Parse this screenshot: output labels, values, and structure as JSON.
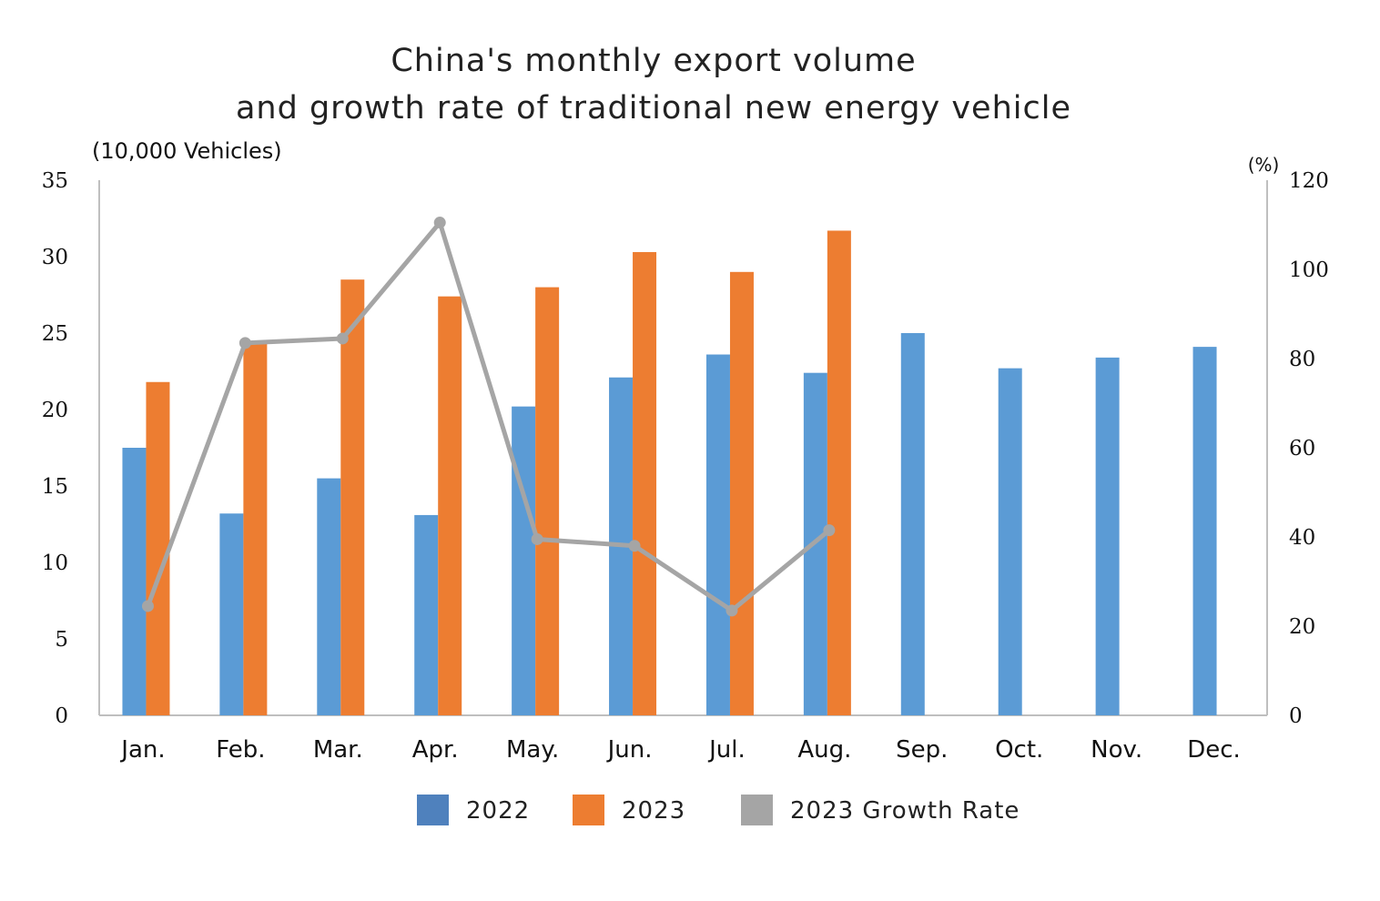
{
  "chart_data": {
    "type": "bar",
    "title_lines": [
      "China's monthly export volume",
      "and growth rate of traditional new energy vehicle"
    ],
    "ylabel_left": "(10,000 Vehicles)",
    "ylabel_right": "(%)",
    "ylim_left": [
      0,
      35
    ],
    "yticks_left": [
      0,
      5,
      10,
      15,
      20,
      25,
      30,
      35
    ],
    "ylim_right": [
      0,
      120
    ],
    "yticks_right": [
      0,
      20,
      40,
      60,
      80,
      100,
      120
    ],
    "grid": false,
    "legend_position": "bottom",
    "categories": [
      "Jan.",
      "Feb.",
      "Mar.",
      "Apr.",
      "May.",
      "Jun.",
      "Jul.",
      "Aug.",
      "Sep.",
      "Oct.",
      "Nov.",
      "Dec."
    ],
    "series": [
      {
        "name": "2022",
        "type": "bar",
        "axis": "left",
        "color": "#5b9bd5",
        "values": [
          17.5,
          13.2,
          15.5,
          13.1,
          20.2,
          22.1,
          23.6,
          22.4,
          25.0,
          22.7,
          23.4,
          24.1
        ]
      },
      {
        "name": "2023",
        "type": "bar",
        "axis": "left",
        "color": "#ed7d31",
        "values": [
          21.8,
          24.3,
          28.5,
          27.4,
          28.0,
          30.3,
          29.0,
          31.7,
          null,
          null,
          null,
          null
        ]
      },
      {
        "name": "2023 Growth Rate",
        "type": "line",
        "axis": "right",
        "color": "#a5a5a5",
        "values": [
          24.5,
          83.5,
          84.5,
          110.5,
          39.5,
          38.0,
          23.5,
          41.5,
          null,
          null,
          null,
          null
        ]
      }
    ],
    "legend": [
      {
        "label": "2022",
        "color": "#4f81bd"
      },
      {
        "label": "2023",
        "color": "#ed7d31"
      },
      {
        "label": "2023 Growth Rate",
        "color": "#a5a5a5"
      }
    ]
  }
}
